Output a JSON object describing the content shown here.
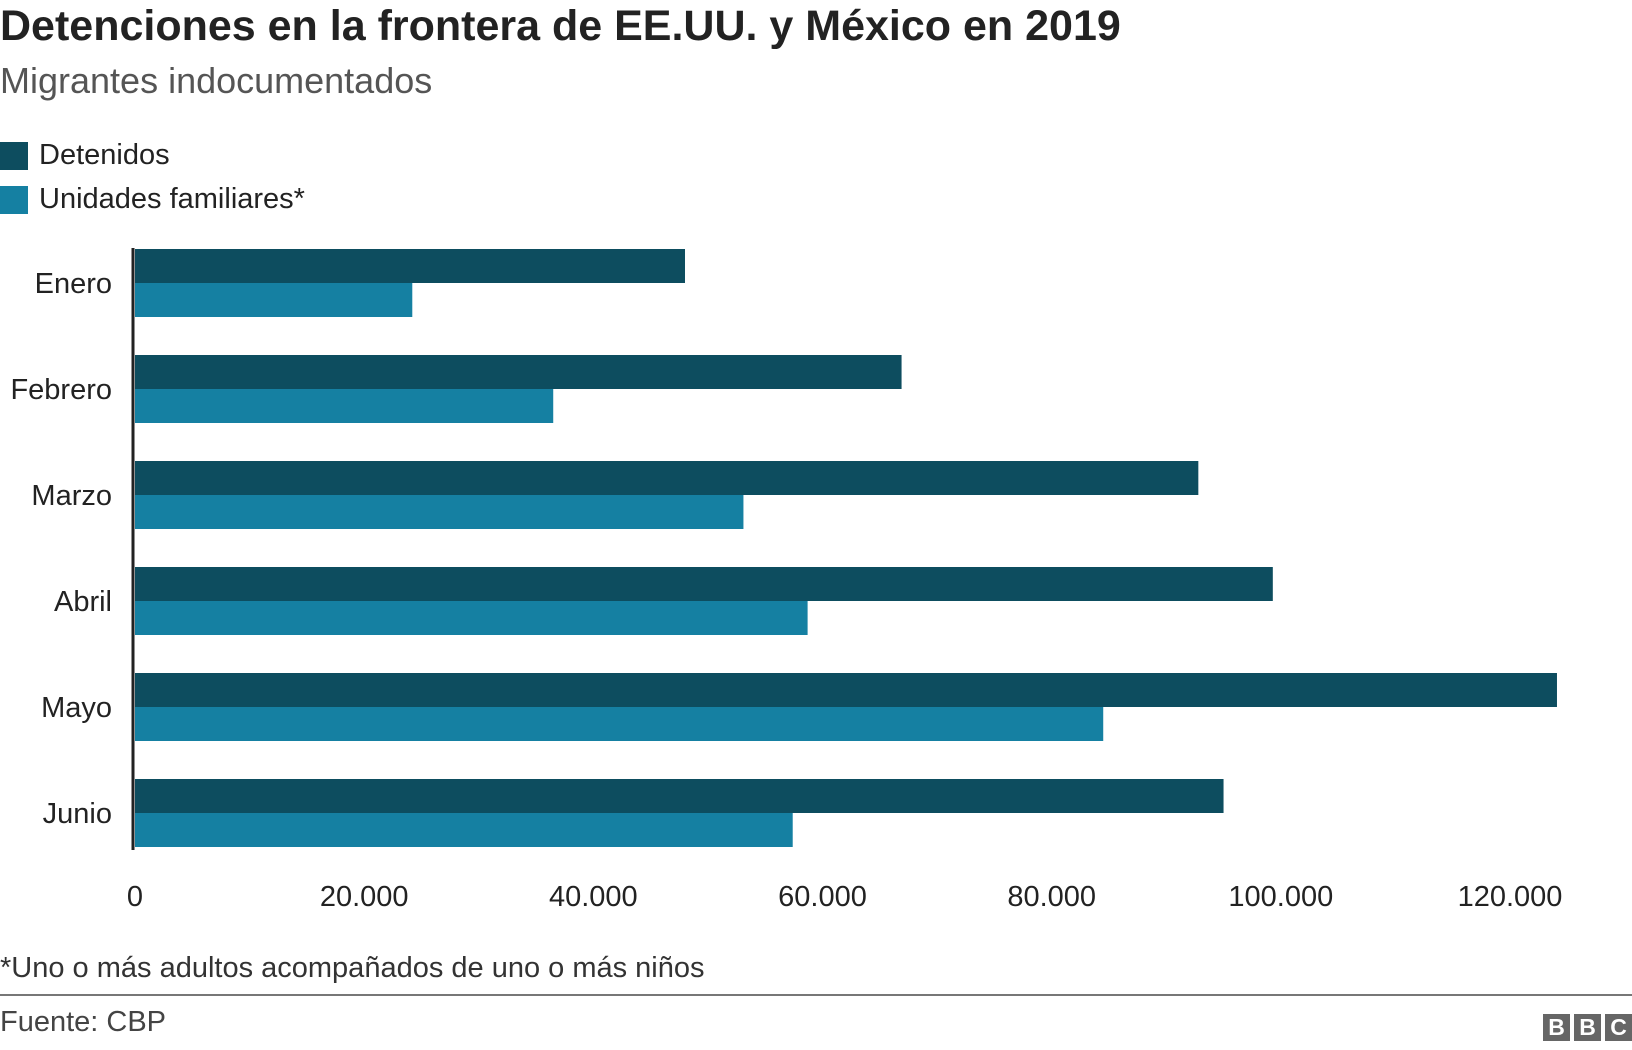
{
  "colors": {
    "detenidos": "#0d4d5f",
    "unidades": "#1580a2",
    "axis": "#222222"
  },
  "chart_data": {
    "type": "bar",
    "orientation": "horizontal",
    "title": "Detenciones en la frontera de EE.UU. y México en 2019",
    "subtitle": "Migrantes indocumentados",
    "categories": [
      "Enero",
      "Febrero",
      "Marzo",
      "Abril",
      "Mayo",
      "Junio"
    ],
    "series": [
      {
        "name": "Detenidos",
        "values": [
          48000,
          66900,
          92800,
          99300,
          124100,
          95000
        ]
      },
      {
        "name": "Unidades familiares*",
        "values": [
          24200,
          36500,
          53100,
          58700,
          84500,
          57400
        ]
      }
    ],
    "xlim": [
      0,
      125000
    ],
    "xticks": [
      0,
      20000,
      40000,
      60000,
      80000,
      100000,
      120000
    ],
    "xtick_labels": [
      "0",
      "20.000",
      "40.000",
      "60.000",
      "80.000",
      "100.000",
      "120.000"
    ],
    "grid": false,
    "legend": "top-left"
  },
  "footnote": "*Uno o más adultos acompañados de uno o más niños",
  "source": "Fuente: CBP",
  "logo": [
    "B",
    "B",
    "C"
  ]
}
